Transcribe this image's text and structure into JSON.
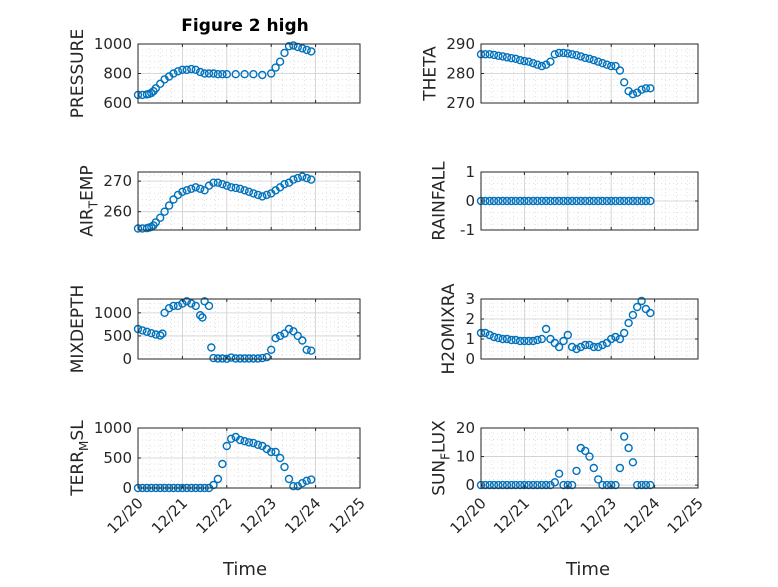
{
  "figure": {
    "title": "Figure 2 high",
    "xlabel": "Time",
    "x_ticks": [
      "12/20",
      "12/21",
      "12/22",
      "12/23",
      "12/24",
      "12/25"
    ],
    "xlim": [
      0,
      5
    ],
    "marker_color": "#0072BD"
  },
  "chart_data": [
    {
      "type": "scatter",
      "key": "pressure",
      "ylabel": "PRESSURE",
      "ylim": [
        600,
        1000
      ],
      "yticks": [
        600,
        800,
        1000
      ],
      "yticklabels": [
        "600",
        "800",
        "1000"
      ],
      "x": [
        0,
        0.1,
        0.2,
        0.25,
        0.3,
        0.35,
        0.4,
        0.5,
        0.6,
        0.7,
        0.8,
        0.9,
        1.0,
        1.1,
        1.2,
        1.3,
        1.4,
        1.5,
        1.6,
        1.7,
        1.8,
        1.9,
        2.0,
        2.2,
        2.4,
        2.6,
        2.8,
        3.0,
        3.1,
        3.2,
        3.3,
        3.4,
        3.5,
        3.6,
        3.7,
        3.8,
        3.9
      ],
      "y": [
        655,
        655,
        658,
        662,
        668,
        680,
        700,
        730,
        760,
        780,
        800,
        815,
        825,
        825,
        830,
        825,
        810,
        800,
        800,
        800,
        795,
        795,
        795,
        795,
        795,
        795,
        790,
        800,
        840,
        880,
        940,
        985,
        990,
        980,
        970,
        960,
        950
      ]
    },
    {
      "type": "scatter",
      "key": "theta",
      "ylabel": "THETA",
      "ylim": [
        270,
        290
      ],
      "yticks": [
        270,
        280,
        290
      ],
      "yticklabels": [
        "270",
        "280",
        "290"
      ],
      "x": [
        0,
        0.1,
        0.2,
        0.3,
        0.4,
        0.5,
        0.6,
        0.7,
        0.8,
        0.9,
        1.0,
        1.1,
        1.2,
        1.3,
        1.4,
        1.5,
        1.6,
        1.7,
        1.8,
        1.9,
        2.0,
        2.1,
        2.2,
        2.3,
        2.4,
        2.5,
        2.6,
        2.7,
        2.8,
        2.9,
        3.0,
        3.1,
        3.2,
        3.3,
        3.4,
        3.5,
        3.6,
        3.7,
        3.8,
        3.9
      ],
      "y": [
        286.5,
        286.5,
        286.5,
        286.3,
        286,
        285.8,
        285.5,
        285.2,
        285,
        284.5,
        284.2,
        284,
        283.5,
        283,
        282.5,
        283,
        284,
        286.5,
        287,
        287,
        286.8,
        286.5,
        286.2,
        285.8,
        285.3,
        285,
        284.5,
        284,
        283.5,
        283,
        282.5,
        282.5,
        281,
        277,
        274,
        273,
        273.5,
        274.5,
        275,
        275
      ]
    },
    {
      "type": "scatter",
      "key": "air_temp",
      "ylabel": "AIR_TEMP",
      "ylabel_parts": [
        "AIR",
        "T",
        "EMP"
      ],
      "ylim": [
        254,
        273
      ],
      "yticks": [
        260,
        270
      ],
      "yticklabels": [
        "260",
        "270"
      ],
      "x": [
        0,
        0.1,
        0.2,
        0.25,
        0.3,
        0.35,
        0.4,
        0.5,
        0.6,
        0.7,
        0.8,
        0.9,
        1.0,
        1.1,
        1.2,
        1.3,
        1.4,
        1.5,
        1.6,
        1.7,
        1.8,
        1.9,
        2.0,
        2.1,
        2.2,
        2.3,
        2.4,
        2.5,
        2.6,
        2.7,
        2.8,
        2.9,
        3.0,
        3.1,
        3.2,
        3.3,
        3.4,
        3.5,
        3.6,
        3.7,
        3.8,
        3.9
      ],
      "y": [
        254.5,
        254.5,
        254.6,
        254.8,
        255,
        255.5,
        256.5,
        258,
        260,
        262,
        264,
        265.5,
        266.5,
        267,
        267.5,
        268,
        267.5,
        267,
        268.5,
        269.5,
        269.5,
        269,
        268.5,
        268,
        267.8,
        267.5,
        267,
        266.5,
        266,
        265.5,
        265,
        265.5,
        266,
        267,
        268,
        269,
        269.5,
        270.5,
        271,
        271.5,
        271,
        270.5
      ]
    },
    {
      "type": "scatter",
      "key": "rainfall",
      "ylabel": "RAINFALL",
      "ylim": [
        -1,
        1
      ],
      "yticks": [
        -1,
        0,
        1
      ],
      "yticklabels": [
        "-1",
        "0",
        "1"
      ],
      "x": [
        0,
        0.1,
        0.2,
        0.3,
        0.4,
        0.5,
        0.6,
        0.7,
        0.8,
        0.9,
        1.0,
        1.1,
        1.2,
        1.3,
        1.4,
        1.5,
        1.6,
        1.7,
        1.8,
        1.9,
        2.0,
        2.1,
        2.2,
        2.3,
        2.4,
        2.5,
        2.6,
        2.7,
        2.8,
        2.9,
        3.0,
        3.1,
        3.2,
        3.3,
        3.4,
        3.5,
        3.6,
        3.7,
        3.8,
        3.9
      ],
      "y": [
        0,
        0,
        0,
        0,
        0,
        0,
        0,
        0,
        0,
        0,
        0,
        0,
        0,
        0,
        0,
        0,
        0,
        0,
        0,
        0,
        0,
        0,
        0,
        0,
        0,
        0,
        0,
        0,
        0,
        0,
        0,
        0,
        0,
        0,
        0,
        0,
        0,
        0,
        0,
        0
      ]
    },
    {
      "type": "scatter",
      "key": "mixdepth",
      "ylabel": "MIXDEPTH",
      "ylim": [
        0,
        1300
      ],
      "yticks": [
        0,
        500,
        1000
      ],
      "yticklabels": [
        "0",
        "500",
        "1000"
      ],
      "x": [
        0,
        0.1,
        0.2,
        0.3,
        0.4,
        0.5,
        0.55,
        0.6,
        0.7,
        0.8,
        0.9,
        1.0,
        1.1,
        1.2,
        1.3,
        1.4,
        1.45,
        1.5,
        1.6,
        1.65,
        1.7,
        1.8,
        1.9,
        2.0,
        2.1,
        2.2,
        2.3,
        2.4,
        2.5,
        2.6,
        2.7,
        2.8,
        2.9,
        3.0,
        3.1,
        3.2,
        3.3,
        3.4,
        3.5,
        3.6,
        3.7,
        3.8,
        3.9
      ],
      "y": [
        650,
        620,
        590,
        560,
        530,
        510,
        550,
        1000,
        1100,
        1150,
        1150,
        1200,
        1250,
        1200,
        1150,
        950,
        900,
        1250,
        1150,
        250,
        20,
        10,
        10,
        5,
        30,
        10,
        10,
        10,
        10,
        10,
        10,
        20,
        40,
        200,
        450,
        500,
        550,
        650,
        600,
        500,
        400,
        200,
        180
      ]
    },
    {
      "type": "scatter",
      "key": "h2omixra",
      "ylabel": "H2OMIXRA",
      "ylim": [
        0,
        3
      ],
      "yticks": [
        0,
        1,
        2,
        3
      ],
      "yticklabels": [
        "0",
        "1",
        "2",
        "3"
      ],
      "x": [
        0,
        0.1,
        0.2,
        0.3,
        0.4,
        0.5,
        0.6,
        0.7,
        0.8,
        0.9,
        1.0,
        1.1,
        1.2,
        1.3,
        1.4,
        1.5,
        1.6,
        1.7,
        1.8,
        1.9,
        2.0,
        2.1,
        2.2,
        2.3,
        2.4,
        2.5,
        2.6,
        2.7,
        2.8,
        2.9,
        3.0,
        3.1,
        3.2,
        3.3,
        3.4,
        3.5,
        3.6,
        3.7,
        3.8,
        3.9
      ],
      "y": [
        1.3,
        1.3,
        1.2,
        1.1,
        1.05,
        1.0,
        1.0,
        0.95,
        0.95,
        0.9,
        0.9,
        0.9,
        0.9,
        0.95,
        1.0,
        1.5,
        1.0,
        0.8,
        0.6,
        0.9,
        1.2,
        0.6,
        0.5,
        0.6,
        0.7,
        0.7,
        0.6,
        0.6,
        0.7,
        0.8,
        1.0,
        1.1,
        1.0,
        1.3,
        1.8,
        2.2,
        2.6,
        2.9,
        2.5,
        2.3
      ]
    },
    {
      "type": "scatter",
      "key": "terr_msl",
      "ylabel": "TERR_MSL",
      "ylabel_parts": [
        "TERR",
        "M",
        "SL"
      ],
      "ylim": [
        0,
        1000
      ],
      "yticks": [
        0,
        500,
        1000
      ],
      "yticklabels": [
        "0",
        "500",
        "1000"
      ],
      "x": [
        0,
        0.1,
        0.2,
        0.3,
        0.4,
        0.5,
        0.6,
        0.7,
        0.8,
        0.9,
        1.0,
        1.1,
        1.2,
        1.3,
        1.4,
        1.5,
        1.6,
        1.7,
        1.8,
        1.9,
        2.0,
        2.1,
        2.2,
        2.3,
        2.4,
        2.5,
        2.6,
        2.7,
        2.8,
        2.9,
        3.0,
        3.1,
        3.2,
        3.3,
        3.4,
        3.5,
        3.6,
        3.7,
        3.8,
        3.9
      ],
      "y": [
        0,
        0,
        0,
        0,
        0,
        0,
        0,
        0,
        0,
        0,
        0,
        0,
        0,
        0,
        0,
        0,
        0,
        50,
        150,
        400,
        700,
        820,
        850,
        800,
        780,
        760,
        750,
        720,
        700,
        650,
        600,
        600,
        500,
        350,
        150,
        30,
        30,
        80,
        120,
        140
      ]
    },
    {
      "type": "scatter",
      "key": "sun_flux",
      "ylabel": "SUN_FLUX",
      "ylabel_parts": [
        "SUN",
        "F",
        "LUX"
      ],
      "ylim": [
        -1,
        20
      ],
      "yticks": [
        0,
        10,
        20
      ],
      "yticklabels": [
        "0",
        "10",
        "20"
      ],
      "x": [
        0,
        0.1,
        0.2,
        0.3,
        0.4,
        0.5,
        0.6,
        0.7,
        0.8,
        0.9,
        1.0,
        1.1,
        1.2,
        1.3,
        1.4,
        1.5,
        1.6,
        1.7,
        1.8,
        1.9,
        2.0,
        2.1,
        2.2,
        2.3,
        2.4,
        2.5,
        2.6,
        2.7,
        2.8,
        2.9,
        3.0,
        3.1,
        3.2,
        3.3,
        3.4,
        3.5,
        3.6,
        3.7,
        3.8,
        3.9
      ],
      "y": [
        0,
        0,
        0,
        0,
        0,
        0,
        0,
        0,
        0,
        0,
        0,
        0,
        0,
        0,
        0,
        0,
        0,
        1,
        4,
        0,
        0,
        0,
        5,
        13,
        12,
        10,
        6,
        2,
        0,
        0,
        0,
        0,
        6,
        17,
        13,
        8,
        0,
        0,
        0,
        0
      ]
    }
  ]
}
